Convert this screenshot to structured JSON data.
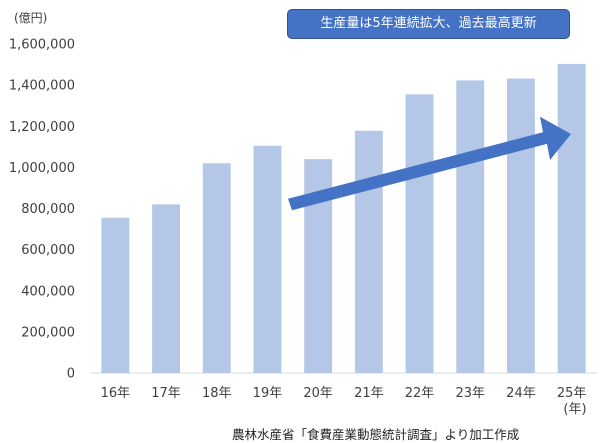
{
  "chart_data": {
    "type": "bar",
    "categories": [
      "16年",
      "17年",
      "18年",
      "19年",
      "20年",
      "21年",
      "22年",
      "23年",
      "24年",
      "25年"
    ],
    "values": [
      755000,
      820000,
      1020000,
      1105000,
      1040000,
      1178000,
      1355000,
      1423000,
      1432000,
      1503000
    ],
    "ylim": [
      0,
      1600000
    ],
    "yticks": [
      "0",
      "200,000",
      "400,000",
      "600,000",
      "800,000",
      "1,000,000",
      "1,200,000",
      "1,400,000",
      "1,600,000"
    ],
    "y_unit_label": "(億円)",
    "x_unit_label": "(年)",
    "bar_color": "#b4c7e7",
    "arrow_color": "#4472c4",
    "grid": false,
    "annotation": "生産量は5年連続拡大、過去最高更新",
    "source": "農林水産省「食費産業動態統計調査」より加工作成"
  }
}
